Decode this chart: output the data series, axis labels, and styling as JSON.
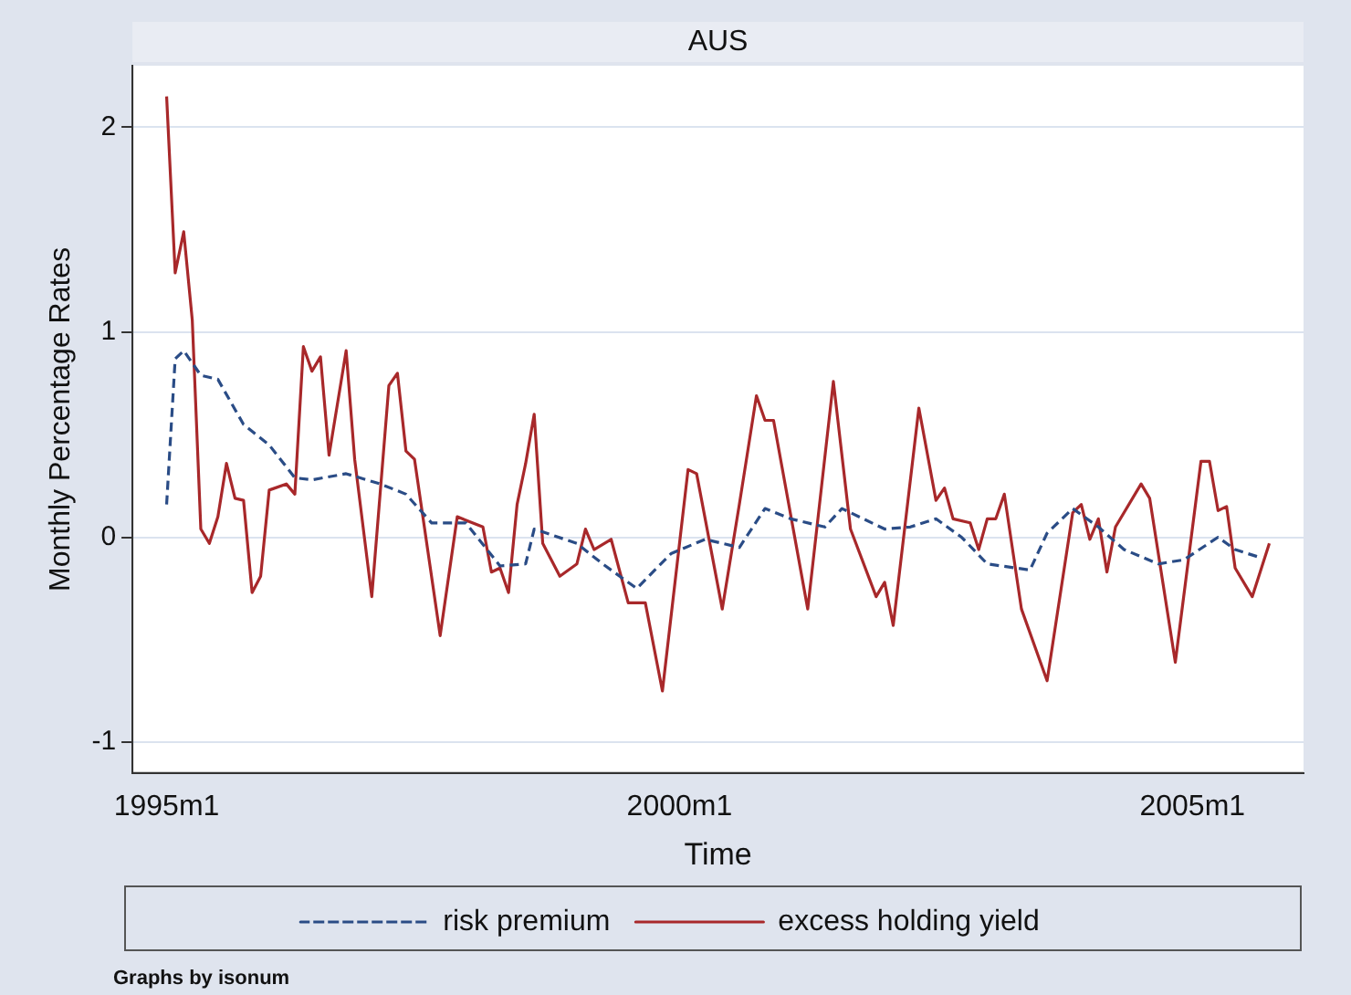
{
  "chart_data": {
    "type": "line",
    "title": "AUS",
    "xlabel": "Time",
    "ylabel": "Monthly Percentage Rates",
    "annotations": [
      "Graphs by isonum"
    ],
    "xlim": [
      "1994-09",
      "2006-02"
    ],
    "xticks": [
      {
        "value": "1995-01",
        "label": "1995m1"
      },
      {
        "value": "2000-01",
        "label": "2000m1"
      },
      {
        "value": "2005-01",
        "label": "2005m1"
      }
    ],
    "ylim": [
      -1.15,
      2.3
    ],
    "yticks": [
      -1,
      0,
      1,
      2
    ],
    "grid": "y",
    "legend": "bottom",
    "series": [
      {
        "name": "risk premium",
        "color": "#2a4c86",
        "line_style": "dashed",
        "x": [
          "1995-01",
          "1995-02",
          "1995-03",
          "1995-05",
          "1995-07",
          "1995-10",
          "1996-01",
          "1996-04",
          "1996-06",
          "1996-10",
          "1997-02",
          "1997-05",
          "1997-08",
          "1997-12",
          "1998-04",
          "1998-07",
          "1998-08",
          "1999-01",
          "1999-04",
          "1999-08",
          "1999-12",
          "2000-04",
          "2000-08",
          "2000-11",
          "2001-02",
          "2001-06",
          "2001-08",
          "2002-01",
          "2002-04",
          "2002-07",
          "2002-10",
          "2003-01",
          "2003-06",
          "2003-08",
          "2003-11",
          "2004-02",
          "2004-05",
          "2004-09",
          "2004-12",
          "2005-04",
          "2005-06",
          "2005-09"
        ],
        "values": [
          0.16,
          0.87,
          0.91,
          0.79,
          0.77,
          0.55,
          0.45,
          0.29,
          0.28,
          0.31,
          0.26,
          0.21,
          0.07,
          0.07,
          -0.14,
          -0.13,
          0.04,
          -0.03,
          -0.13,
          -0.25,
          -0.08,
          -0.01,
          -0.05,
          0.14,
          0.09,
          0.05,
          0.14,
          0.04,
          0.05,
          0.09,
          0,
          -0.13,
          -0.16,
          0.02,
          0.14,
          0.05,
          -0.06,
          -0.13,
          -0.11,
          0,
          -0.06,
          -0.1
        ]
      },
      {
        "name": "excess holding yield",
        "color": "#a8282a",
        "line_style": "solid",
        "x": [
          "1995-01",
          "1995-02",
          "1995-03",
          "1995-04",
          "1995-05",
          "1995-06",
          "1995-07",
          "1995-08",
          "1995-09",
          "1995-10",
          "1995-11",
          "1995-12",
          "1996-01",
          "1996-03",
          "1996-04",
          "1996-05",
          "1996-06",
          "1996-07",
          "1996-08",
          "1996-10",
          "1996-11",
          "1997-01",
          "1997-03",
          "1997-04",
          "1997-05",
          "1997-06",
          "1997-09",
          "1997-11",
          "1998-02",
          "1998-03",
          "1998-04",
          "1998-05",
          "1998-06",
          "1998-07",
          "1998-08",
          "1998-09",
          "1998-11",
          "1999-01",
          "1999-02",
          "1999-03",
          "1999-05",
          "1999-07",
          "1999-09",
          "1999-11",
          "2000-01",
          "2000-02",
          "2000-03",
          "2000-06",
          "2000-08",
          "2000-10",
          "2000-11",
          "2000-12",
          "2001-04",
          "2001-07",
          "2001-09",
          "2001-12",
          "2002-01",
          "2002-02",
          "2002-05",
          "2002-07",
          "2002-08",
          "2002-09",
          "2002-11",
          "2002-12",
          "2003-01",
          "2003-02",
          "2003-03",
          "2003-05",
          "2003-08",
          "2003-11",
          "2003-12",
          "2004-01",
          "2004-02",
          "2004-03",
          "2004-04",
          "2004-07",
          "2004-08",
          "2004-11",
          "2005-02",
          "2005-03",
          "2005-04",
          "2005-05",
          "2005-06",
          "2005-08",
          "2005-10"
        ],
        "values": [
          2.15,
          1.29,
          1.49,
          1.06,
          0.04,
          -0.03,
          0.1,
          0.36,
          0.19,
          0.18,
          -0.27,
          -0.19,
          0.23,
          0.26,
          0.21,
          0.93,
          0.81,
          0.88,
          0.4,
          0.91,
          0.38,
          -0.29,
          0.74,
          0.8,
          0.42,
          0.38,
          -0.48,
          0.1,
          0.05,
          -0.17,
          -0.15,
          -0.27,
          0.16,
          0.36,
          0.6,
          -0.03,
          -0.19,
          -0.13,
          0.04,
          -0.06,
          -0.01,
          -0.32,
          -0.32,
          -0.75,
          -0.03,
          0.33,
          0.31,
          -0.35,
          0.16,
          0.69,
          0.57,
          0.57,
          -0.35,
          0.76,
          0.04,
          -0.29,
          -0.22,
          -0.43,
          0.63,
          0.18,
          0.24,
          0.09,
          0.07,
          -0.06,
          0.09,
          0.09,
          0.21,
          -0.35,
          -0.7,
          0.12,
          0.16,
          -0.01,
          0.09,
          -0.17,
          0.05,
          0.26,
          0.19,
          -0.61,
          0.37,
          0.37,
          0.13,
          0.15,
          -0.15,
          -0.29,
          -0.03
        ]
      }
    ]
  }
}
